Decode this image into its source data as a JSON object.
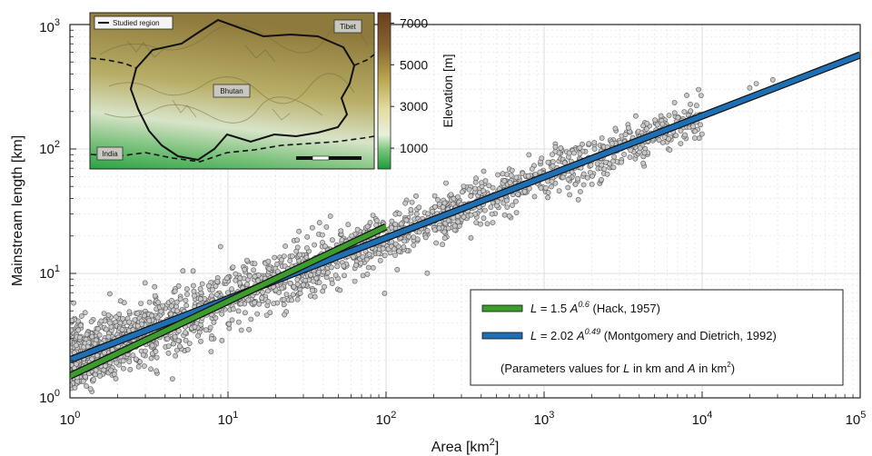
{
  "chart_data": {
    "type": "scatter",
    "xlabel": "Area [km",
    "xlabel_sup": "2",
    "xlabel_tail": "]",
    "ylabel": "Mainstream length [km]",
    "x_scale": "log",
    "y_scale": "log",
    "xlim": [
      1,
      100000
    ],
    "ylim": [
      1,
      1000
    ],
    "grid": true,
    "x_tick_labels": [
      {
        "base": "10",
        "exp": "0"
      },
      {
        "base": "10",
        "exp": "1"
      },
      {
        "base": "10",
        "exp": "2"
      },
      {
        "base": "10",
        "exp": "3"
      },
      {
        "base": "10",
        "exp": "4"
      },
      {
        "base": "10",
        "exp": "5"
      }
    ],
    "y_tick_labels": [
      {
        "base": "10",
        "exp": "0"
      },
      {
        "base": "10",
        "exp": "1"
      },
      {
        "base": "10",
        "exp": "2"
      },
      {
        "base": "10",
        "exp": "3"
      }
    ],
    "scatter_color": "#c8c8c8",
    "scatter_edge": "#555555",
    "series": [
      {
        "name": "Hack, 1957",
        "coef": 1.5,
        "exp": 0.6,
        "x_range": [
          1,
          100
        ],
        "color": "#3c9c2c",
        "legend": {
          "pre": "L",
          "eq": " = 1.5 ",
          "A": "A",
          "sup": "0.6",
          "post": " (Hack, 1957)"
        }
      },
      {
        "name": "Montgomery and Dietrich, 1992",
        "coef": 2.02,
        "exp": 0.49,
        "x_range": [
          1,
          100000
        ],
        "color": "#1f6fb4",
        "legend": {
          "pre": "L",
          "eq": " = 2.02 ",
          "A": "A",
          "sup": "0.49",
          "post": " (Montgomery and Dietrich, 1992)"
        }
      }
    ],
    "note": {
      "t1": "(Parameters values for ",
      "L": "L",
      "t2": " in km and ",
      "A": "A",
      "t3": " in km",
      "sup": "2",
      "t4": ")"
    },
    "legend_position": "bottom-right",
    "outliers": [
      [
        20000,
        310
      ],
      [
        22000,
        335
      ],
      [
        28000,
        360
      ],
      [
        9500,
        300
      ],
      [
        8000,
        270
      ]
    ]
  },
  "inset": {
    "legend_label": "Studied region",
    "labels": {
      "tibet": "Tibet",
      "bhutan": "Bhutan",
      "india": "India"
    },
    "colorbar_label": "Elevation [m]",
    "colorbar_ticks": [
      "7000",
      "5000",
      "3000",
      "1000"
    ],
    "colorbar_range": [
      0,
      7500
    ],
    "colorbar_tick_values": [
      7000,
      5000,
      3000,
      1000
    ]
  }
}
